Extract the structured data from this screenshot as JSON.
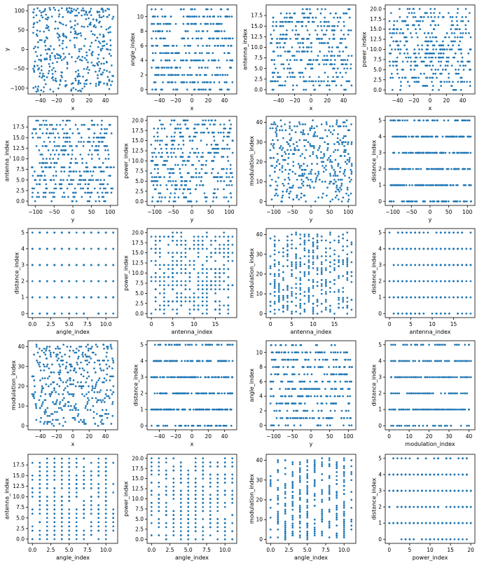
{
  "colors": {
    "marker": "#1f77b4",
    "axis": "#000000",
    "background": "#ffffff"
  },
  "chart_data": [
    {
      "type": "scatter",
      "xlabel": "x",
      "ylabel": "y",
      "xlim": [
        -55,
        55
      ],
      "ylim": [
        -115,
        115
      ],
      "xticks": [
        -40,
        -20,
        0,
        20,
        40
      ],
      "yticks": [
        -100,
        -50,
        0,
        50,
        100
      ],
      "xticklabels": [
        "−40",
        "−20",
        "0",
        "20",
        "40"
      ],
      "yticklabels": [
        "−100",
        "−50",
        "0",
        "50",
        "100"
      ],
      "n": 400,
      "x_int": false,
      "x_range": [
        -50,
        50
      ],
      "y_int": false,
      "y_range": [
        -110,
        110
      ]
    },
    {
      "type": "scatter",
      "xlabel": "x",
      "ylabel": "angle_index",
      "xlim": [
        -55,
        55
      ],
      "ylim": [
        -0.6,
        11.6
      ],
      "xticks": [
        -40,
        -20,
        0,
        20,
        40
      ],
      "yticks": [
        0,
        2,
        4,
        6,
        8,
        10
      ],
      "xticklabels": [
        "−40",
        "−20",
        "0",
        "20",
        "40"
      ],
      "yticklabels": [
        "0",
        "2",
        "4",
        "6",
        "8",
        "10"
      ],
      "n": 400,
      "x_int": false,
      "x_range": [
        -50,
        50
      ],
      "y_int": true,
      "y_range": [
        0,
        11
      ]
    },
    {
      "type": "scatter",
      "xlabel": "x",
      "ylabel": "antenna_index",
      "xlim": [
        -55,
        55
      ],
      "ylim": [
        -1,
        20
      ],
      "xticks": [
        -40,
        -20,
        0,
        20,
        40
      ],
      "yticks": [
        0,
        2.5,
        5,
        7.5,
        10,
        12.5,
        15,
        17.5
      ],
      "xticklabels": [
        "−40",
        "−20",
        "0",
        "20",
        "40"
      ],
      "yticklabels": [
        "0.0",
        "2.5",
        "5.0",
        "7.5",
        "10.0",
        "12.5",
        "15.0",
        "17.5"
      ],
      "n": 400,
      "x_int": false,
      "x_range": [
        -50,
        50
      ],
      "y_int": true,
      "y_range": [
        0,
        19
      ]
    },
    {
      "type": "scatter",
      "xlabel": "x",
      "ylabel": "power_index",
      "xlim": [
        -55,
        55
      ],
      "ylim": [
        -1,
        21
      ],
      "xticks": [
        -40,
        -20,
        0,
        20,
        40
      ],
      "yticks": [
        0,
        2.5,
        5,
        7.5,
        10,
        12.5,
        15,
        17.5,
        20
      ],
      "xticklabels": [
        "−40",
        "−20",
        "0",
        "20",
        "40"
      ],
      "yticklabels": [
        "0.0",
        "2.5",
        "5.0",
        "7.5",
        "10.0",
        "12.5",
        "15.0",
        "17.5",
        "20.0"
      ],
      "n": 400,
      "x_int": false,
      "x_range": [
        -50,
        50
      ],
      "y_int": true,
      "y_range": [
        0,
        20
      ]
    },
    {
      "type": "scatter",
      "xlabel": "y",
      "ylabel": "antenna_index",
      "xlim": [
        -120,
        120
      ],
      "ylim": [
        -1,
        20
      ],
      "xticks": [
        -100,
        -50,
        0,
        50,
        100
      ],
      "yticks": [
        0,
        2.5,
        5,
        7.5,
        10,
        12.5,
        15,
        17.5
      ],
      "xticklabels": [
        "−100",
        "−50",
        "0",
        "50",
        "100"
      ],
      "yticklabels": [
        "0.0",
        "2.5",
        "5.0",
        "7.5",
        "10.0",
        "12.5",
        "15.0",
        "17.5"
      ],
      "n": 400,
      "x_int": false,
      "x_range": [
        -110,
        110
      ],
      "y_int": true,
      "y_range": [
        0,
        19
      ]
    },
    {
      "type": "scatter",
      "xlabel": "y",
      "ylabel": "power_index",
      "xlim": [
        -120,
        120
      ],
      "ylim": [
        -1,
        21
      ],
      "xticks": [
        -100,
        -50,
        0,
        50,
        100
      ],
      "yticks": [
        0,
        2.5,
        5,
        7.5,
        10,
        12.5,
        15,
        17.5,
        20
      ],
      "xticklabels": [
        "−100",
        "−50",
        "0",
        "50",
        "100"
      ],
      "yticklabels": [
        "0.0",
        "2.5",
        "5.0",
        "7.5",
        "10.0",
        "12.5",
        "15.0",
        "17.5",
        "20.0"
      ],
      "n": 400,
      "x_int": false,
      "x_range": [
        -110,
        110
      ],
      "y_int": true,
      "y_range": [
        0,
        20
      ]
    },
    {
      "type": "scatter",
      "xlabel": "y",
      "ylabel": "modulation_index",
      "xlim": [
        -120,
        120
      ],
      "ylim": [
        -2,
        43
      ],
      "xticks": [
        -100,
        -50,
        0,
        50,
        100
      ],
      "yticks": [
        0,
        10,
        20,
        30,
        40
      ],
      "xticklabels": [
        "−100",
        "−50",
        "0",
        "50",
        "100"
      ],
      "yticklabels": [
        "0",
        "10",
        "20",
        "30",
        "40"
      ],
      "n": 400,
      "x_int": false,
      "x_range": [
        -110,
        110
      ],
      "y_int": true,
      "y_range": [
        0,
        41
      ]
    },
    {
      "type": "scatter",
      "xlabel": "y",
      "ylabel": "distance_index",
      "xlim": [
        -120,
        120
      ],
      "ylim": [
        -0.25,
        5.25
      ],
      "xticks": [
        -100,
        -50,
        0,
        50,
        100
      ],
      "yticks": [
        0,
        1,
        2,
        3,
        4,
        5
      ],
      "xticklabels": [
        "−100",
        "−50",
        "0",
        "50",
        "100"
      ],
      "yticklabels": [
        "0",
        "1",
        "2",
        "3",
        "4",
        "5"
      ],
      "n": 400,
      "x_int": false,
      "x_range": [
        -110,
        110
      ],
      "y_int": true,
      "y_range": [
        0,
        5
      ]
    },
    {
      "type": "scatter",
      "xlabel": "angle_index",
      "ylabel": "distance_index",
      "xlim": [
        -0.6,
        11.6
      ],
      "ylim": [
        -0.25,
        5.25
      ],
      "xticks": [
        0,
        2.5,
        5,
        7.5,
        10
      ],
      "yticks": [
        0,
        1,
        2,
        3,
        4,
        5
      ],
      "xticklabels": [
        "0.0",
        "2.5",
        "5.0",
        "7.5",
        "10.0"
      ],
      "yticklabels": [
        "0",
        "1",
        "2",
        "3",
        "4",
        "5"
      ],
      "n": 400,
      "x_int": true,
      "x_range": [
        0,
        11
      ],
      "y_int": true,
      "y_range": [
        0,
        5
      ]
    },
    {
      "type": "scatter",
      "xlabel": "antenna_index",
      "ylabel": "power_index",
      "xlim": [
        -1,
        20
      ],
      "ylim": [
        -1,
        21
      ],
      "xticks": [
        0,
        5,
        10,
        15
      ],
      "yticks": [
        0,
        2.5,
        5,
        7.5,
        10,
        12.5,
        15,
        17.5,
        20
      ],
      "xticklabels": [
        "0",
        "5",
        "10",
        "15"
      ],
      "yticklabels": [
        "0.0",
        "2.5",
        "5.0",
        "7.5",
        "10.0",
        "12.5",
        "15.0",
        "17.5",
        "20.0"
      ],
      "n": 400,
      "x_int": true,
      "x_range": [
        0,
        19
      ],
      "y_int": true,
      "y_range": [
        0,
        20
      ]
    },
    {
      "type": "scatter",
      "xlabel": "antenna_index",
      "ylabel": "modulation_index",
      "xlim": [
        -1,
        20
      ],
      "ylim": [
        -2,
        43
      ],
      "xticks": [
        0,
        5,
        10,
        15
      ],
      "yticks": [
        0,
        10,
        20,
        30,
        40
      ],
      "xticklabels": [
        "0",
        "5",
        "10",
        "15"
      ],
      "yticklabels": [
        "0",
        "10",
        "20",
        "30",
        "40"
      ],
      "n": 400,
      "x_int": true,
      "x_range": [
        0,
        19
      ],
      "y_int": true,
      "y_range": [
        0,
        41
      ]
    },
    {
      "type": "scatter",
      "xlabel": "antenna_index",
      "ylabel": "distance_index",
      "xlim": [
        -1,
        20
      ],
      "ylim": [
        -0.25,
        5.25
      ],
      "xticks": [
        0,
        5,
        10,
        15
      ],
      "yticks": [
        0,
        1,
        2,
        3,
        4,
        5
      ],
      "xticklabels": [
        "0",
        "5",
        "10",
        "15"
      ],
      "yticklabels": [
        "0",
        "1",
        "2",
        "3",
        "4",
        "5"
      ],
      "n": 400,
      "x_int": true,
      "x_range": [
        0,
        19
      ],
      "y_int": true,
      "y_range": [
        0,
        5
      ]
    },
    {
      "type": "scatter",
      "xlabel": "x",
      "ylabel": "modulation_index",
      "xlim": [
        -55,
        55
      ],
      "ylim": [
        -2,
        43
      ],
      "xticks": [
        -40,
        -20,
        0,
        20,
        40
      ],
      "yticks": [
        0,
        10,
        20,
        30,
        40
      ],
      "xticklabels": [
        "−40",
        "−20",
        "0",
        "20",
        "40"
      ],
      "yticklabels": [
        "0",
        "10",
        "20",
        "30",
        "40"
      ],
      "n": 400,
      "x_int": false,
      "x_range": [
        -50,
        50
      ],
      "y_int": true,
      "y_range": [
        0,
        41
      ]
    },
    {
      "type": "scatter",
      "xlabel": "x",
      "ylabel": "distance_index",
      "xlim": [
        -55,
        55
      ],
      "ylim": [
        -0.25,
        5.25
      ],
      "xticks": [
        -40,
        -20,
        0,
        20,
        40
      ],
      "yticks": [
        0,
        1,
        2,
        3,
        4,
        5
      ],
      "xticklabels": [
        "−40",
        "−20",
        "0",
        "20",
        "40"
      ],
      "yticklabels": [
        "0",
        "1",
        "2",
        "3",
        "4",
        "5"
      ],
      "n": 400,
      "x_int": false,
      "x_range": [
        -50,
        50
      ],
      "y_int": true,
      "y_range": [
        0,
        5
      ]
    },
    {
      "type": "scatter",
      "xlabel": "y",
      "ylabel": "angle_index",
      "xlim": [
        -120,
        120
      ],
      "ylim": [
        -0.6,
        11.6
      ],
      "xticks": [
        -100,
        -50,
        0,
        50,
        100
      ],
      "yticks": [
        0,
        2,
        4,
        6,
        8,
        10
      ],
      "xticklabels": [
        "−100",
        "−50",
        "0",
        "50",
        "100"
      ],
      "yticklabels": [
        "0",
        "2",
        "4",
        "6",
        "8",
        "10"
      ],
      "n": 400,
      "x_int": false,
      "x_range": [
        -110,
        110
      ],
      "y_int": true,
      "y_range": [
        0,
        11
      ]
    },
    {
      "type": "scatter",
      "xlabel": "modulation_index",
      "ylabel": "distance_index",
      "xlim": [
        -2,
        43
      ],
      "ylim": [
        -0.25,
        5.25
      ],
      "xticks": [
        0,
        10,
        20,
        30,
        40
      ],
      "yticks": [
        0,
        1,
        2,
        3,
        4,
        5
      ],
      "xticklabels": [
        "0",
        "10",
        "20",
        "30",
        "40"
      ],
      "yticklabels": [
        "0",
        "1",
        "2",
        "3",
        "4",
        "5"
      ],
      "n": 400,
      "x_int": true,
      "x_range": [
        0,
        41
      ],
      "y_int": true,
      "y_range": [
        0,
        5
      ]
    },
    {
      "type": "scatter",
      "xlabel": "angle_index",
      "ylabel": "antenna_index",
      "xlim": [
        -0.6,
        11.6
      ],
      "ylim": [
        -1,
        20
      ],
      "xticks": [
        0,
        2.5,
        5,
        7.5,
        10
      ],
      "yticks": [
        0,
        2.5,
        5,
        7.5,
        10,
        12.5,
        15,
        17.5
      ],
      "xticklabels": [
        "0.0",
        "2.5",
        "5.0",
        "7.5",
        "10.0"
      ],
      "yticklabels": [
        "0.0",
        "2.5",
        "5.0",
        "7.5",
        "10.0",
        "12.5",
        "15.0",
        "17.5"
      ],
      "n": 400,
      "x_int": true,
      "x_range": [
        0,
        11
      ],
      "y_int": true,
      "y_range": [
        0,
        19
      ]
    },
    {
      "type": "scatter",
      "xlabel": "angle_index",
      "ylabel": "power_index",
      "xlim": [
        -0.6,
        11.6
      ],
      "ylim": [
        -1,
        21
      ],
      "xticks": [
        0,
        2.5,
        5,
        7.5,
        10
      ],
      "yticks": [
        0,
        2.5,
        5,
        7.5,
        10,
        12.5,
        15,
        17.5,
        20
      ],
      "xticklabels": [
        "0.0",
        "2.5",
        "5.0",
        "7.5",
        "10.0"
      ],
      "yticklabels": [
        "0.0",
        "2.5",
        "5.0",
        "7.5",
        "10.0",
        "12.5",
        "15.0",
        "17.5",
        "20.0"
      ],
      "n": 400,
      "x_int": true,
      "x_range": [
        0,
        11
      ],
      "y_int": true,
      "y_range": [
        0,
        20
      ]
    },
    {
      "type": "scatter",
      "xlabel": "angle_index",
      "ylabel": "modulation_index",
      "xlim": [
        -0.6,
        11.6
      ],
      "ylim": [
        -2,
        43
      ],
      "xticks": [
        0,
        2.5,
        5,
        7.5,
        10
      ],
      "yticks": [
        0,
        10,
        20,
        30,
        40
      ],
      "xticklabels": [
        "0.0",
        "2.5",
        "5.0",
        "7.5",
        "10.0"
      ],
      "yticklabels": [
        "0",
        "10",
        "20",
        "30",
        "40"
      ],
      "n": 400,
      "x_int": true,
      "x_range": [
        0,
        11
      ],
      "y_int": true,
      "y_range": [
        0,
        41
      ]
    },
    {
      "type": "scatter",
      "xlabel": "power_index",
      "ylabel": "distance_index",
      "xlim": [
        -1,
        21
      ],
      "ylim": [
        -0.25,
        5.25
      ],
      "xticks": [
        0,
        5,
        10,
        15,
        20
      ],
      "yticks": [
        0,
        1,
        2,
        3,
        4,
        5
      ],
      "xticklabels": [
        "0",
        "5",
        "10",
        "15",
        "20"
      ],
      "yticklabels": [
        "0",
        "1",
        "2",
        "3",
        "4",
        "5"
      ],
      "n": 400,
      "x_int": true,
      "x_range": [
        0,
        20
      ],
      "y_int": true,
      "y_range": [
        0,
        5
      ]
    }
  ]
}
